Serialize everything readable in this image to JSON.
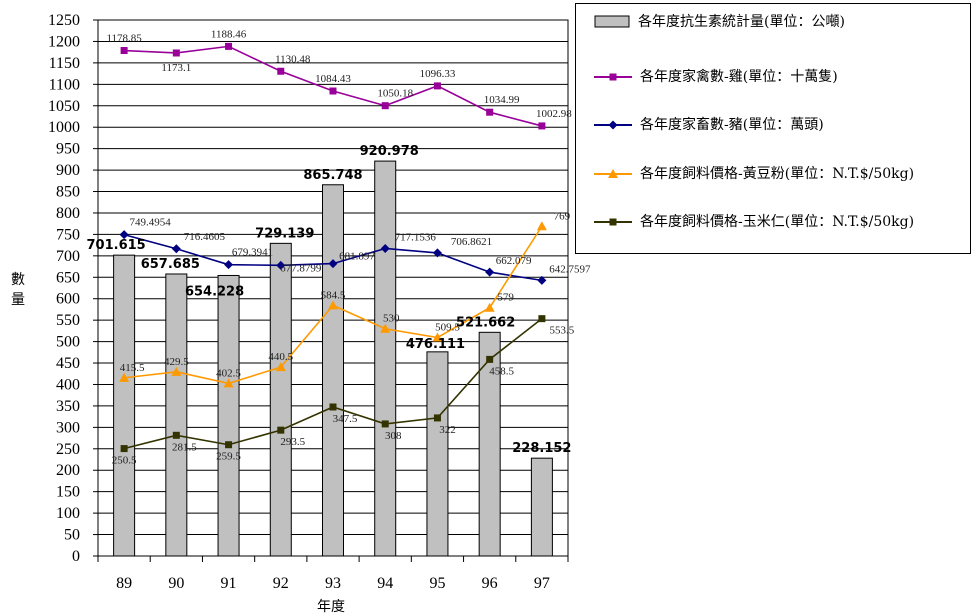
{
  "chart_data": {
    "type": "bar+line",
    "xlabel": "年度",
    "ylabel": "數量",
    "ylim": [
      0,
      1250
    ],
    "ytick_step": 50,
    "categories": [
      "89",
      "90",
      "91",
      "92",
      "93",
      "94",
      "95",
      "96",
      "97"
    ],
    "bar_series": {
      "name": "各年度抗生素統計量(單位：公噸)",
      "color": "#c0c0c0",
      "values": [
        701.615,
        657.685,
        654.228,
        729.139,
        865.748,
        920.978,
        476.111,
        521.662,
        228.152
      ],
      "labels": [
        "701.615",
        "657.685",
        "654.228",
        "729.139",
        "865.748",
        "920.978",
        "476.111",
        "521.662",
        "228.152"
      ]
    },
    "line_series": [
      {
        "name": "各年度家禽數-雞(單位：十萬隻)",
        "color": "#990099",
        "marker": "square",
        "values": [
          1178.85,
          1173.1,
          1188.46,
          1130.48,
          1084.43,
          1050.18,
          1096.33,
          1034.99,
          1002.98
        ],
        "labels": [
          "1178.85",
          "1173.1",
          "1188.46",
          "1130.48",
          "1084.43",
          "1050.18",
          "1096.33",
          "1034.99",
          "1002.98"
        ]
      },
      {
        "name": "各年度家畜數-豬(單位：萬頭)",
        "color": "#000080",
        "marker": "diamond",
        "values": [
          749.4954,
          716.4605,
          679.3941,
          677.8799,
          681.897,
          717.1536,
          706.8621,
          662.079,
          642.7597
        ],
        "labels": [
          "749.4954",
          "716.4605",
          "679.3941",
          "677.8799",
          "681.897",
          "717.1536",
          "706.8621",
          "662.079",
          "642.7597"
        ]
      },
      {
        "name": "各年度飼料價格-黃豆粉(單位：N.T.$/50kg)",
        "color": "#ff9900",
        "marker": "triangle",
        "values": [
          415.5,
          429.5,
          402.5,
          440.5,
          584.5,
          530,
          509.5,
          579,
          769
        ],
        "labels": [
          "415.5",
          "429.5",
          "402.5",
          "440.5",
          "584.5",
          "530",
          "509.5",
          "579",
          "769"
        ]
      },
      {
        "name": "各年度飼料價格-玉米仁(單位：N.T.$/50kg)",
        "color": "#333300",
        "marker": "square",
        "values": [
          250.5,
          281.5,
          259.5,
          293.5,
          347.5,
          308,
          322,
          458.5,
          553.5
        ],
        "labels": [
          "250.5",
          "281.5",
          "259.5",
          "293.5",
          "347.5",
          "308",
          "322",
          "458.5",
          "553.5"
        ]
      }
    ],
    "legend_position": "top-right",
    "grid": "horizontal"
  }
}
